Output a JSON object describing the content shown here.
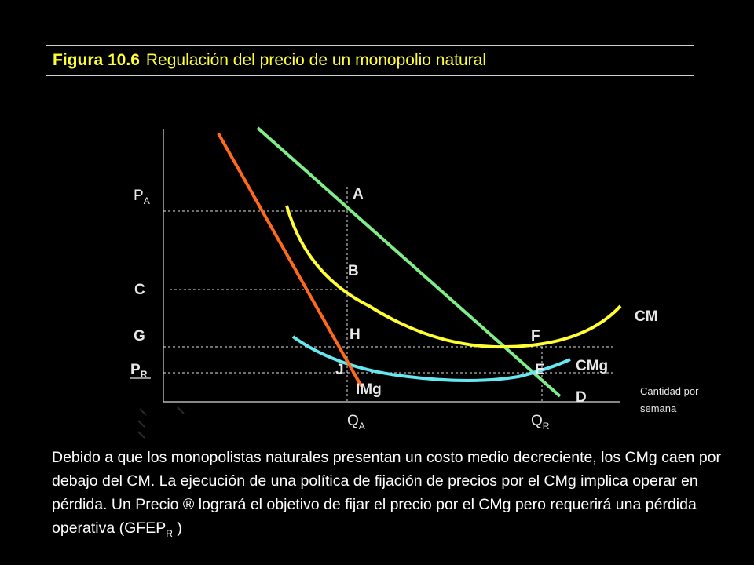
{
  "title": {
    "figure_number": "Figura 10.6",
    "text": "Regulación del precio  de un monopolio natural"
  },
  "diagram": {
    "price_labels": {
      "pa": "P",
      "pa_sub": "A",
      "c": "C",
      "g": "G",
      "pr": "P",
      "pr_sub": "R"
    },
    "quantity_labels": {
      "qa": "Q",
      "qa_sub": "A",
      "qr": "Q",
      "qr_sub": "R"
    },
    "points": {
      "a": "A",
      "b": "B",
      "h": "H",
      "j": "J",
      "f": "F",
      "e": "E"
    },
    "curves": {
      "cm": "CM",
      "cmg": "CMg",
      "img": "IMg",
      "d": "D"
    },
    "axis_note_line1": "Cantidad por",
    "axis_note_line2": "semana",
    "colors": {
      "demand": "#80ee88",
      "marginal_revenue": "#ff6a1a",
      "average_cost": "#ffff33",
      "marginal_cost": "#66e8f0",
      "title_text": "#ffff33"
    }
  },
  "caption": {
    "text": "Debido a que los monopolistas naturales presentan un costo medio decreciente, los CMg caen por debajo del CM. La ejecución de una política de fijación de precios por el CMg implica operar en pérdida. Un Precio ® logrará el objetivo de fijar el precio por el CMg pero requerirá una pérdida operativa (GFEP",
    "sub": "R",
    "tail": " )"
  }
}
